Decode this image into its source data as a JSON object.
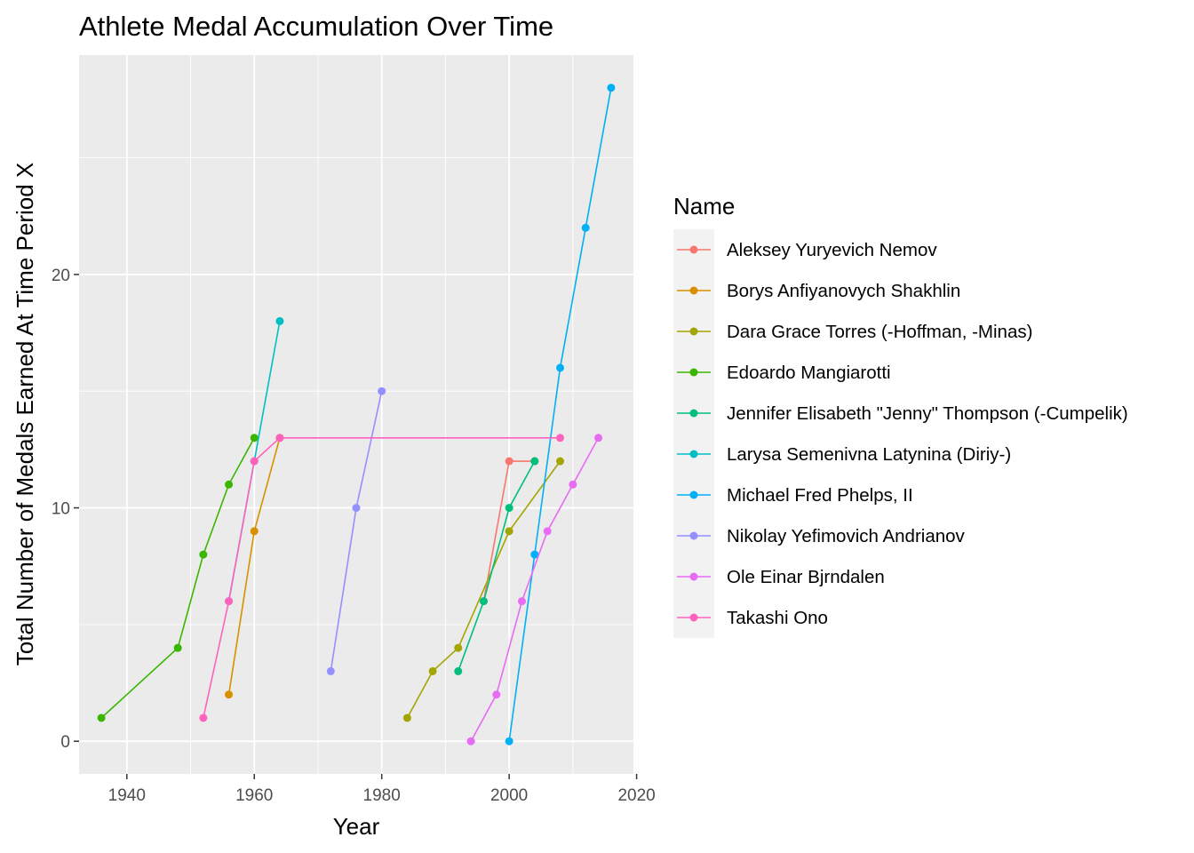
{
  "chart_data": {
    "type": "line",
    "title": "Athlete Medal Accumulation Over Time",
    "xlabel": "Year",
    "ylabel": "Total Number of Medals Earned At Time Period X",
    "xlim": [
      1932.5,
      2019.5
    ],
    "ylim": [
      -1.4,
      29.4
    ],
    "x_ticks": [
      1940,
      1960,
      1980,
      2000,
      2020
    ],
    "y_ticks": [
      0,
      10,
      20
    ],
    "x_tick_labels": [
      "1940",
      "1960",
      "1980",
      "2000",
      "2020"
    ],
    "y_tick_labels": [
      "0",
      "10",
      "20"
    ],
    "grid": true,
    "legend_title": "Name",
    "legend_position": "right",
    "series": [
      {
        "name": "Aleksey Yuryevich Nemov",
        "color": "#F8766D",
        "x": [
          1996,
          2000,
          2004
        ],
        "y": [
          6,
          12,
          12
        ]
      },
      {
        "name": "Borys Anfiyanovych Shakhlin",
        "color": "#D89000",
        "x": [
          1956,
          1960,
          1964
        ],
        "y": [
          2,
          9,
          13
        ]
      },
      {
        "name": "Dara Grace Torres (-Hoffman, -Minas)",
        "color": "#A3A500",
        "x": [
          1984,
          1988,
          1992,
          2000,
          2008
        ],
        "y": [
          1,
          3,
          4,
          9,
          12
        ]
      },
      {
        "name": "Edoardo Mangiarotti",
        "color": "#39B600",
        "x": [
          1936,
          1948,
          1952,
          1956,
          1960
        ],
        "y": [
          1,
          4,
          8,
          11,
          13
        ]
      },
      {
        "name": "Jennifer Elisabeth \"Jenny\" Thompson (-Cumpelik)",
        "color": "#00BF7D",
        "x": [
          1992,
          1996,
          2000,
          2004
        ],
        "y": [
          3,
          6,
          10,
          12
        ]
      },
      {
        "name": "Larysa Semenivna Latynina (Diriy-)",
        "color": "#00BFC4",
        "x": [
          1956,
          1960,
          1964
        ],
        "y": [
          6,
          12,
          18
        ]
      },
      {
        "name": "Michael Fred Phelps, II",
        "color": "#00B0F6",
        "x": [
          2000,
          2004,
          2008,
          2012,
          2016
        ],
        "y": [
          0,
          8,
          16,
          22,
          28
        ]
      },
      {
        "name": "Nikolay Yefimovich Andrianov",
        "color": "#9590FF",
        "x": [
          1972,
          1976,
          1980
        ],
        "y": [
          3,
          10,
          15
        ]
      },
      {
        "name": "Ole Einar Bjrndalen",
        "color": "#E76BF3",
        "x": [
          1994,
          1998,
          2002,
          2006,
          2010,
          2014
        ],
        "y": [
          0,
          2,
          6,
          9,
          11,
          13
        ]
      },
      {
        "name": "Takashi Ono",
        "color": "#FF62BC",
        "x": [
          1952,
          1956,
          1960,
          1964,
          2008
        ],
        "y": [
          1,
          6,
          12,
          13,
          13
        ]
      }
    ]
  }
}
